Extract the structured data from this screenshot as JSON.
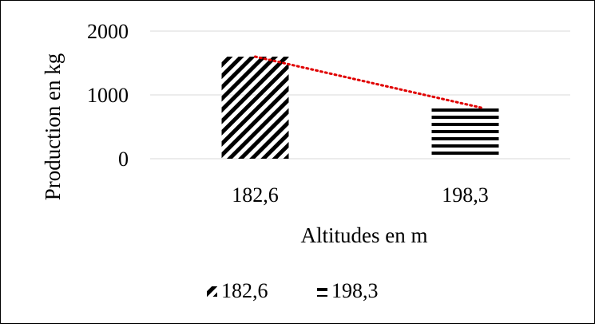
{
  "chart_data": {
    "type": "bar",
    "categories": [
      "182,6",
      "198,3"
    ],
    "series": [
      {
        "name": "182,6",
        "category": "182,6",
        "value": 1600,
        "pattern": "diagonal-stripes"
      },
      {
        "name": "198,3",
        "category": "198,3",
        "value": 800,
        "pattern": "horizontal-stripes"
      }
    ],
    "xlabel": "Altitudes en m",
    "ylabel": "Production en kg",
    "ylim": [
      0,
      2000
    ],
    "yticks": [
      0,
      1000,
      2000
    ],
    "ytick_labels": [
      "0",
      "1000",
      "2000"
    ],
    "grid": true,
    "legend_position": "bottom",
    "trendline": {
      "type": "linear",
      "style": "dotted",
      "color": "#e00000"
    },
    "colors": {
      "bar_pattern": "#000000",
      "grid": "#d9d9d9",
      "trendline": "#e00000"
    }
  }
}
